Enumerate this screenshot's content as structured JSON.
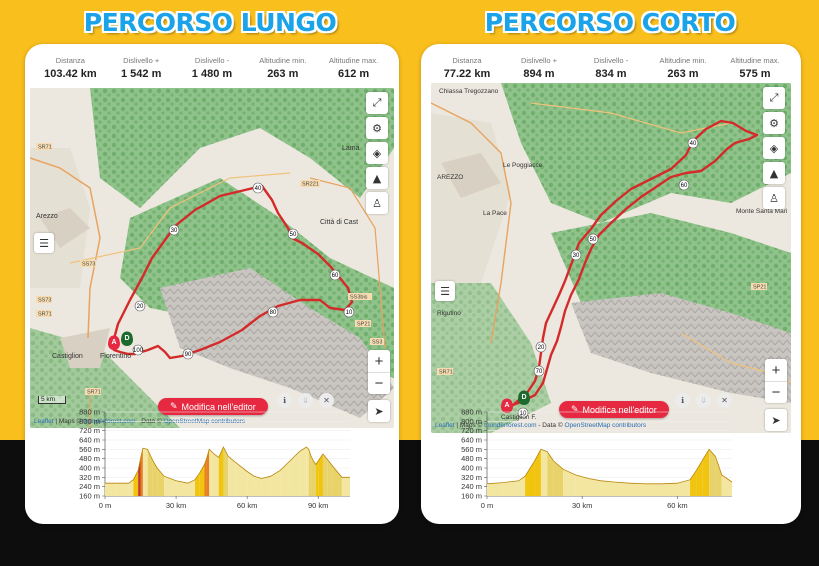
{
  "headings": {
    "left": "PERCORSO LUNGO",
    "right": "PERCORSO CORTO"
  },
  "colors": {
    "accent_red": "#e62940",
    "title_blue": "#1aa3e8",
    "background_yellow": "#f9bf1c",
    "route": "#d42a2a"
  },
  "panels": [
    {
      "stats": [
        {
          "label": "Distanza",
          "value": "103.42 km"
        },
        {
          "label": "Dislivello +",
          "value": "1 542 m"
        },
        {
          "label": "Dislivello -",
          "value": "1 480 m"
        },
        {
          "label": "Altitudine min.",
          "value": "263 m"
        },
        {
          "label": "Altitudine max.",
          "value": "612 m"
        }
      ],
      "map": {
        "place_labels": [
          "Lama",
          "Arezzo",
          "Città di Cast",
          "Castiglion",
          "Fiorentino"
        ],
        "road_labels": [
          "SR71",
          "SS73",
          "SR221",
          "SS3bis",
          "SS73",
          "SR71",
          "SP21",
          "SR71",
          "SS3"
        ],
        "km_markers": [
          "10",
          "20",
          "30",
          "40",
          "50",
          "60",
          "70",
          "80",
          "90",
          "100"
        ],
        "pins": [
          "A",
          "D"
        ],
        "scale": "5 km",
        "edit_button": "Modifica nell'editor",
        "attribution": {
          "leaflet": "Leaflet",
          "maps": " | Maps © ",
          "thunderforest": "thunderforest.com",
          "data": " - Data © ",
          "osm": "OpenStreetMap contributors"
        }
      },
      "elevation": {
        "y_ticks": [
          "880 m",
          "800 m",
          "720 m",
          "640 m",
          "560 m",
          "480 m",
          "400 m",
          "320 m",
          "240 m",
          "160 m"
        ],
        "x_ticks": [
          "0 m",
          "30 km",
          "60 km",
          "90 km"
        ]
      }
    },
    {
      "stats": [
        {
          "label": "Distanza",
          "value": "77.22 km"
        },
        {
          "label": "Dislivello +",
          "value": "894 m"
        },
        {
          "label": "Dislivello -",
          "value": "834 m"
        },
        {
          "label": "Altitudine min.",
          "value": "263 m"
        },
        {
          "label": "Altitudine max.",
          "value": "575 m"
        }
      ],
      "map": {
        "place_labels": [
          "Chiassa Tregozzano",
          "AREZZO",
          "Le Poggiacce",
          "La Pace",
          "Rigutino",
          "Monte Santa Mari",
          "Castiglion F."
        ],
        "road_labels": [
          "SR71",
          "SP21"
        ],
        "km_markers": [
          "10",
          "20",
          "30",
          "40",
          "50",
          "60",
          "70"
        ],
        "pins": [
          "A",
          "D"
        ],
        "edit_button": "Modifica nell'editor",
        "attribution": {
          "leaflet": "Leaflet",
          "maps": " | Maps © ",
          "thunderforest": "thunderforest.com",
          "data": " - Data © ",
          "osm": "OpenStreetMap contributors"
        }
      },
      "elevation": {
        "y_ticks": [
          "880 m",
          "800 m",
          "720 m",
          "640 m",
          "560 m",
          "480 m",
          "400 m",
          "320 m",
          "240 m",
          "160 m"
        ],
        "x_ticks": [
          "0 m",
          "30 km",
          "60 km"
        ]
      }
    }
  ],
  "chart_data": [
    {
      "type": "area",
      "title": "",
      "xlabel": "",
      "ylabel": "",
      "x_unit": "km",
      "y_unit": "m",
      "ylim": [
        160,
        880
      ],
      "xlim": [
        0,
        103.42
      ],
      "x": [
        0,
        5,
        10,
        12,
        14,
        15,
        16,
        18,
        20,
        22,
        25,
        30,
        35,
        38,
        40,
        42,
        43,
        44,
        46,
        48,
        50,
        52,
        55,
        60,
        63,
        66,
        70,
        74,
        78,
        82,
        85,
        86,
        87,
        88,
        89,
        90,
        92,
        94,
        96,
        100,
        103.42
      ],
      "y": [
        270,
        270,
        270,
        300,
        380,
        480,
        570,
        560,
        470,
        400,
        330,
        290,
        270,
        300,
        360,
        430,
        490,
        560,
        520,
        490,
        580,
        500,
        450,
        370,
        330,
        310,
        330,
        380,
        460,
        540,
        580,
        560,
        500,
        460,
        430,
        460,
        520,
        470,
        420,
        320,
        320
      ]
    },
    {
      "type": "area",
      "title": "",
      "xlabel": "",
      "ylabel": "",
      "x_unit": "km",
      "y_unit": "m",
      "ylim": [
        160,
        880
      ],
      "xlim": [
        0,
        77.22
      ],
      "x": [
        0,
        5,
        10,
        12,
        15,
        17,
        19,
        21,
        24,
        28,
        32,
        36,
        40,
        45,
        50,
        55,
        60,
        64,
        66,
        68,
        70,
        72,
        74,
        77.22
      ],
      "y": [
        265,
        275,
        290,
        330,
        460,
        560,
        540,
        460,
        390,
        340,
        310,
        290,
        280,
        270,
        265,
        265,
        270,
        300,
        380,
        470,
        560,
        500,
        340,
        280
      ]
    }
  ]
}
